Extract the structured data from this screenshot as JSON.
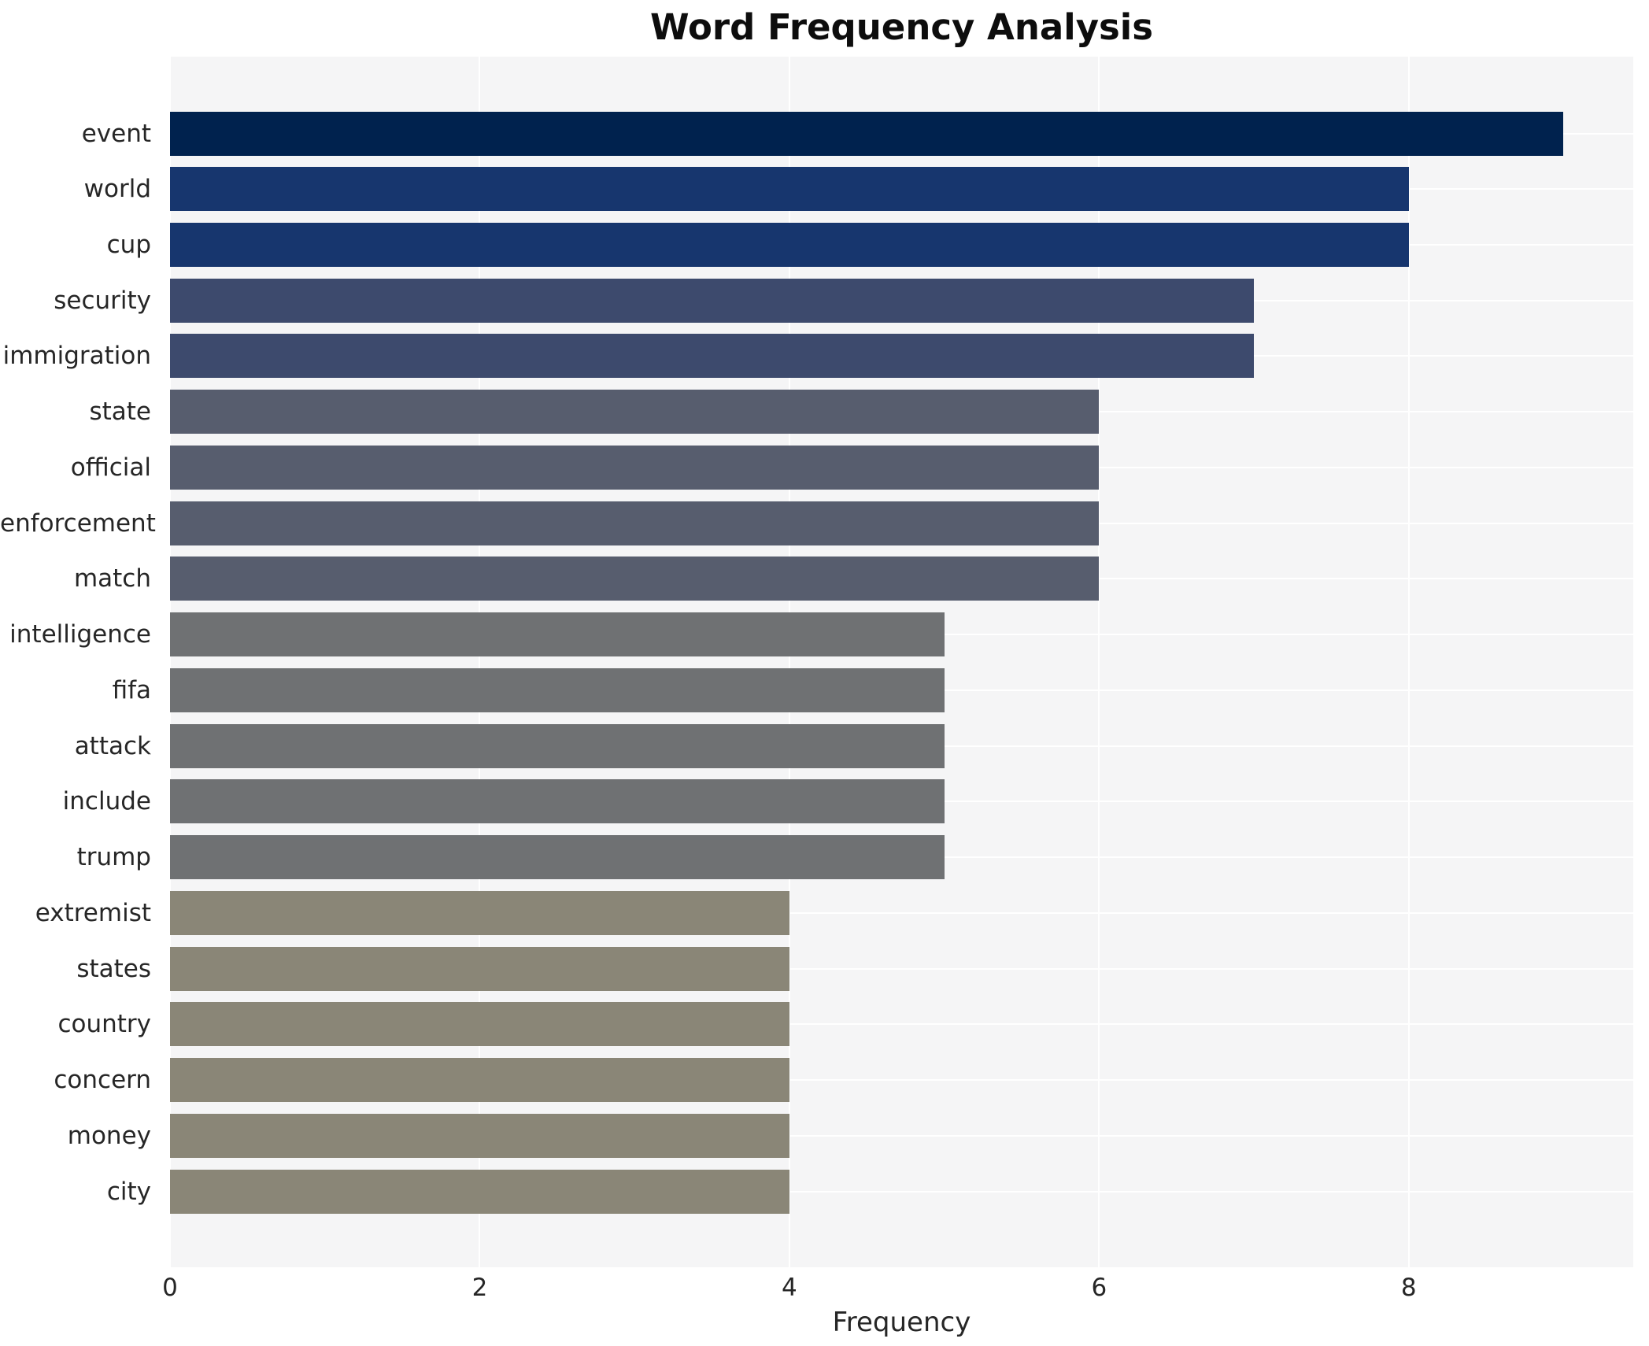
{
  "chart_data": {
    "type": "bar",
    "orientation": "horizontal",
    "title": "Word Frequency Analysis",
    "xlabel": "Frequency",
    "ylabel": "",
    "categories": [
      "event",
      "world",
      "cup",
      "security",
      "immigration",
      "state",
      "official",
      "enforcement",
      "match",
      "intelligence",
      "fifa",
      "attack",
      "include",
      "trump",
      "extremist",
      "states",
      "country",
      "concern",
      "money",
      "city"
    ],
    "values": [
      9,
      8,
      8,
      7,
      7,
      6,
      6,
      6,
      6,
      5,
      5,
      5,
      5,
      5,
      4,
      4,
      4,
      4,
      4,
      4
    ],
    "bar_colors": [
      "#00224e",
      "#17366e",
      "#17366e",
      "#3d4a6d",
      "#3d4a6d",
      "#575d6e",
      "#575d6e",
      "#575d6e",
      "#575d6e",
      "#6f7173",
      "#6f7173",
      "#6f7173",
      "#6f7173",
      "#6f7173",
      "#8a8677",
      "#8a8677",
      "#8a8677",
      "#8a8677",
      "#8a8677",
      "#8a8677"
    ],
    "color_by_value": {
      "9": "#00224e",
      "8": "#17366e",
      "7": "#3d4a6d",
      "6": "#575d6e",
      "5": "#6f7173",
      "4": "#8a8677"
    },
    "x_ticks": [
      0,
      2,
      4,
      6,
      8
    ],
    "xlim": [
      0,
      9.45
    ],
    "grid": true,
    "legend": false,
    "plot_bg_color": "#f5f5f6",
    "grid_color": "#ffffff",
    "figure_bg_color": "#ffffff",
    "text_color": "#262626"
  }
}
